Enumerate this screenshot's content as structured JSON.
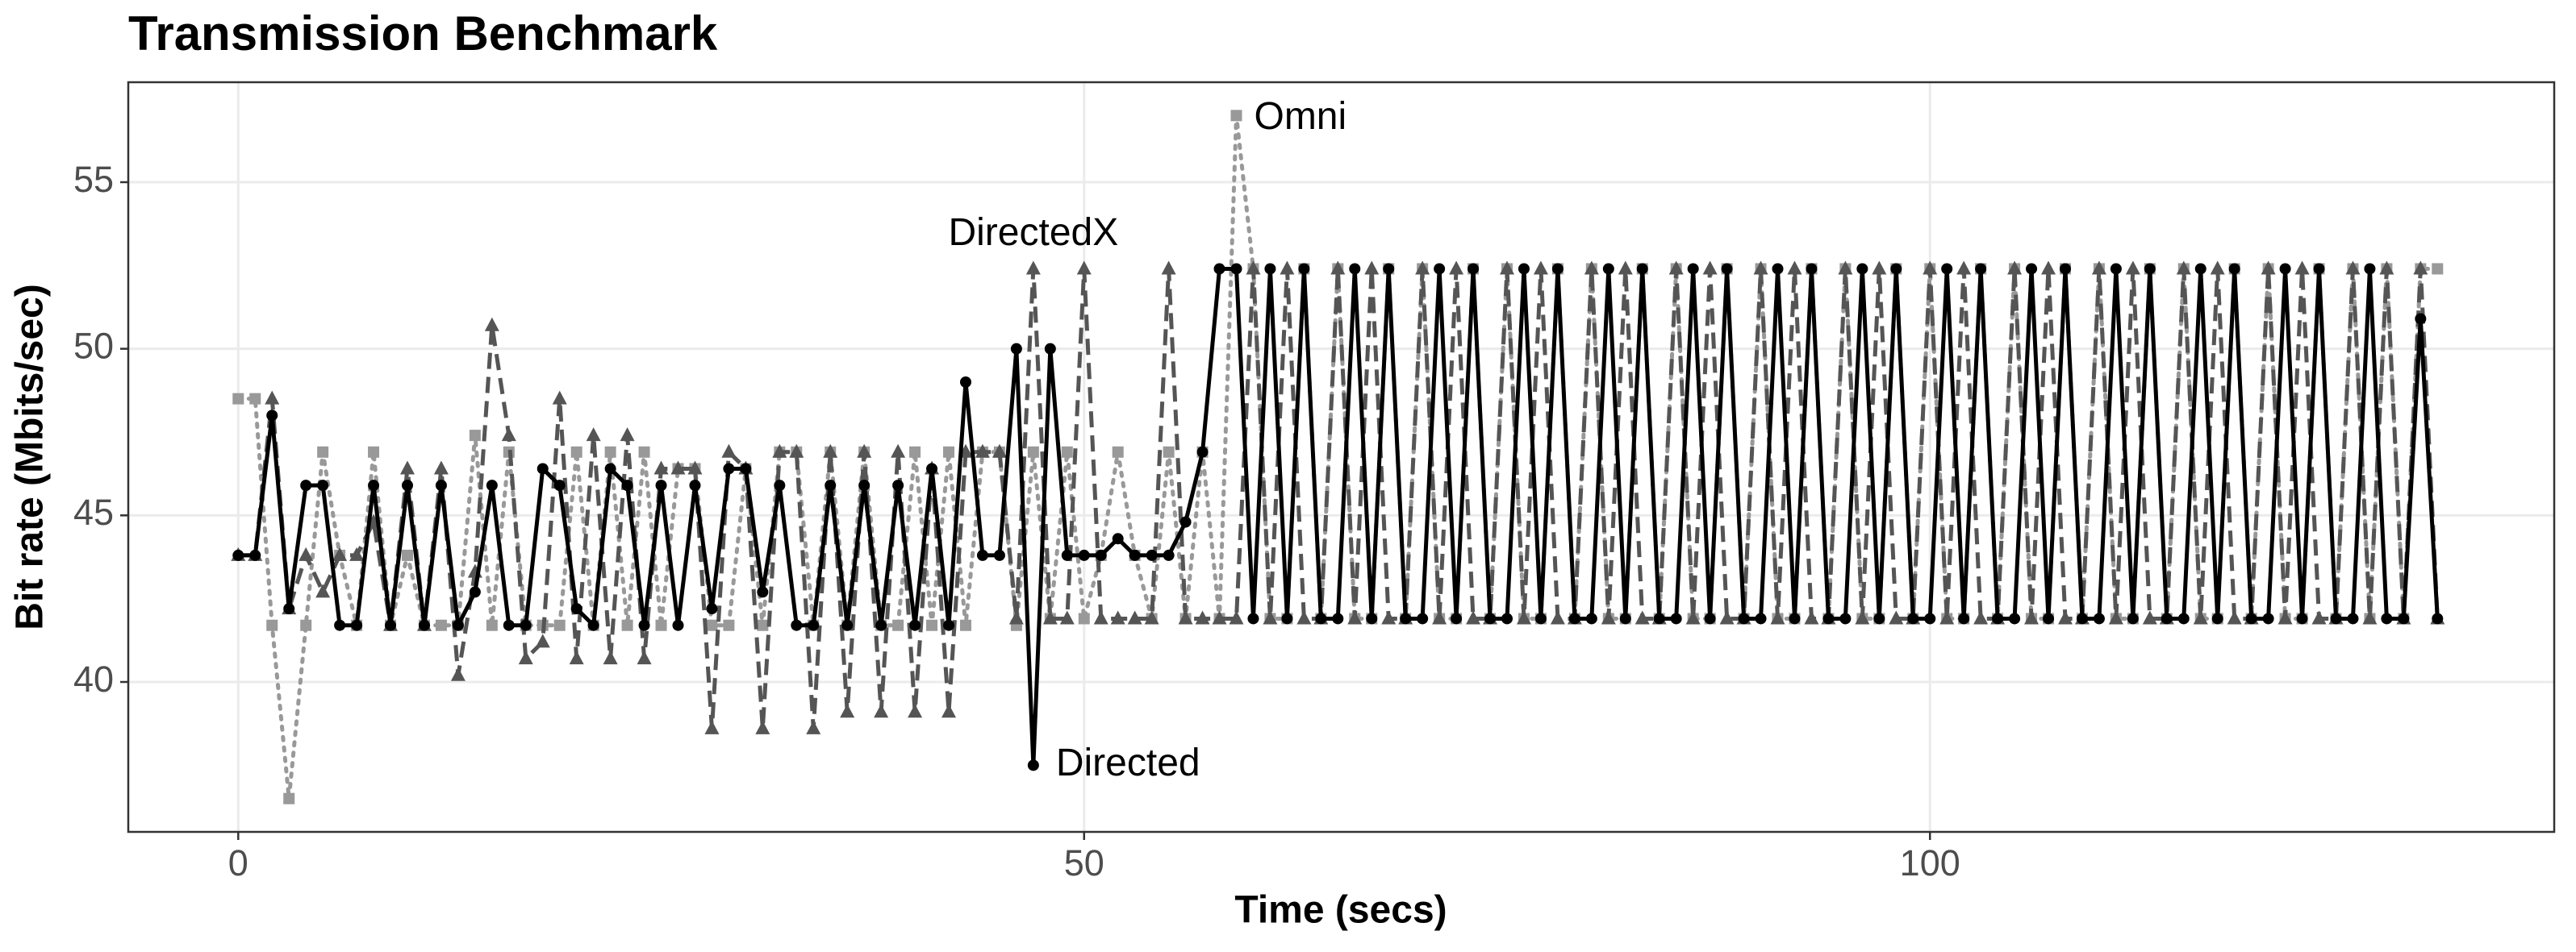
{
  "chart_data": {
    "type": "line",
    "title": "Transmission Benchmark",
    "x_label": "Time (secs)",
    "y_label": "Bit rate (Mbits/sec)",
    "xlim": [
      -6.5,
      136.9
    ],
    "ylim": [
      35.5,
      58.0
    ],
    "xticks": [
      0,
      50,
      100
    ],
    "yticks": [
      40,
      45,
      50,
      55
    ],
    "grid": true,
    "x": [
      0,
      1,
      2,
      3,
      4,
      5,
      6,
      7,
      8,
      9,
      10,
      11,
      12,
      13,
      14,
      15,
      16,
      17,
      18,
      19,
      20,
      21,
      22,
      23,
      24,
      25,
      26,
      27,
      28,
      29,
      30,
      31,
      32,
      33,
      34,
      35,
      36,
      37,
      38,
      39,
      40,
      41,
      42,
      43,
      44,
      45,
      46,
      47,
      48,
      49,
      50,
      51,
      52,
      53,
      54,
      55,
      56,
      57,
      58,
      59,
      60,
      61,
      62,
      63,
      64,
      65,
      66,
      67,
      68,
      69,
      70,
      71,
      72,
      73,
      74,
      75,
      76,
      77,
      78,
      79,
      80,
      81,
      82,
      83,
      84,
      85,
      86,
      87,
      88,
      89,
      90,
      91,
      92,
      93,
      94,
      95,
      96,
      97,
      98,
      99,
      100,
      101,
      102,
      103,
      104,
      105,
      106,
      107,
      108,
      109,
      110,
      111,
      112,
      113,
      114,
      115,
      116,
      117,
      118,
      119,
      120,
      121,
      122,
      123,
      124,
      125,
      126,
      127,
      128,
      129,
      130
    ],
    "series": [
      {
        "name": "Directed",
        "color": "#000000",
        "marker": "circle",
        "dash": "solid",
        "values": [
          43.8,
          43.8,
          48.0,
          42.2,
          45.9,
          45.9,
          41.7,
          41.7,
          45.9,
          41.7,
          45.9,
          41.7,
          45.9,
          41.7,
          42.7,
          45.9,
          41.7,
          41.7,
          46.4,
          45.9,
          42.2,
          41.7,
          46.4,
          45.9,
          41.7,
          45.9,
          41.7,
          45.9,
          42.2,
          46.4,
          46.4,
          42.7,
          45.9,
          41.7,
          41.7,
          45.9,
          41.7,
          45.9,
          41.7,
          45.9,
          41.7,
          46.4,
          41.7,
          49.0,
          43.8,
          43.8,
          50.0,
          37.5,
          50.0,
          43.8,
          43.8,
          43.8,
          44.3,
          43.8,
          43.8,
          43.8,
          44.8,
          46.9,
          52.4,
          52.4,
          41.9,
          52.4,
          41.9,
          52.4,
          41.9,
          41.9,
          52.4,
          41.9,
          52.4,
          41.9,
          41.9,
          52.4,
          41.9,
          52.4,
          41.9,
          41.9,
          52.4,
          41.9,
          52.4,
          41.9,
          41.9,
          52.4,
          41.9,
          52.4,
          41.9,
          41.9,
          52.4,
          41.9,
          52.4,
          41.9,
          41.9,
          52.4,
          41.9,
          52.4,
          41.9,
          41.9,
          52.4,
          41.9,
          52.4,
          41.9,
          41.9,
          52.4,
          41.9,
          52.4,
          41.9,
          41.9,
          52.4,
          41.9,
          52.4,
          41.9,
          41.9,
          52.4,
          41.9,
          52.4,
          41.9,
          41.9,
          52.4,
          41.9,
          52.4,
          41.9,
          41.9,
          52.4,
          41.9,
          52.4,
          41.9,
          41.9,
          52.4,
          41.9,
          41.9,
          50.9,
          41.9
        ]
      },
      {
        "name": "DirectedX",
        "color": "#555555",
        "marker": "triangle",
        "dash": "dashed",
        "values": [
          43.8,
          43.8,
          48.5,
          42.2,
          43.8,
          42.7,
          43.8,
          43.8,
          44.8,
          41.7,
          46.4,
          41.7,
          46.4,
          40.2,
          43.3,
          50.7,
          47.4,
          40.7,
          41.2,
          48.5,
          40.7,
          47.4,
          40.7,
          47.4,
          40.7,
          46.4,
          46.4,
          46.4,
          38.6,
          46.9,
          46.4,
          38.6,
          46.9,
          46.9,
          38.6,
          46.9,
          39.1,
          46.9,
          39.1,
          46.9,
          39.1,
          46.4,
          39.1,
          46.9,
          46.9,
          46.9,
          41.9,
          52.4,
          41.9,
          41.9,
          52.4,
          41.9,
          41.9,
          41.9,
          41.9,
          52.4,
          41.9,
          41.9,
          41.9,
          41.9,
          52.4,
          41.9,
          52.4,
          41.9,
          41.9,
          52.4,
          41.9,
          52.4,
          41.9,
          41.9,
          52.4,
          41.9,
          52.4,
          41.9,
          41.9,
          52.4,
          41.9,
          52.4,
          41.9,
          41.9,
          52.4,
          41.9,
          52.4,
          41.9,
          41.9,
          52.4,
          41.9,
          52.4,
          41.9,
          41.9,
          52.4,
          41.9,
          52.4,
          41.9,
          41.9,
          52.4,
          41.9,
          52.4,
          41.9,
          41.9,
          52.4,
          41.9,
          52.4,
          41.9,
          41.9,
          52.4,
          41.9,
          52.4,
          41.9,
          41.9,
          52.4,
          41.9,
          52.4,
          41.9,
          41.9,
          52.4,
          41.9,
          52.4,
          41.9,
          41.9,
          52.4,
          41.9,
          52.4,
          41.9,
          41.9,
          52.4,
          41.9,
          52.4,
          41.9,
          52.4,
          41.9
        ]
      },
      {
        "name": "Omni",
        "color": "#999999",
        "marker": "square",
        "dash": "dotted",
        "values": [
          48.5,
          48.5,
          41.7,
          36.5,
          41.7,
          46.9,
          43.8,
          41.7,
          46.9,
          41.7,
          43.8,
          41.7,
          41.7,
          41.7,
          47.4,
          41.7,
          46.9,
          41.7,
          41.7,
          41.7,
          46.9,
          41.7,
          46.9,
          41.7,
          46.9,
          41.7,
          46.4,
          46.4,
          41.7,
          41.7,
          46.4,
          41.7,
          46.9,
          46.9,
          41.7,
          46.9,
          41.7,
          46.9,
          41.7,
          41.7,
          46.9,
          41.7,
          46.9,
          41.7,
          46.9,
          46.9,
          41.7,
          46.9,
          41.9,
          46.9,
          41.9,
          43.8,
          46.9,
          43.8,
          41.9,
          46.9,
          41.9,
          46.9,
          41.9,
          57.0,
          52.4,
          41.9,
          41.9,
          52.4,
          41.9,
          52.4,
          41.9,
          41.9,
          52.4,
          41.9,
          52.4,
          41.9,
          41.9,
          52.4,
          41.9,
          52.4,
          41.9,
          41.9,
          52.4,
          41.9,
          52.4,
          41.9,
          41.9,
          52.4,
          41.9,
          52.4,
          41.9,
          41.9,
          52.4,
          41.9,
          52.4,
          41.9,
          41.9,
          52.4,
          41.9,
          52.4,
          41.9,
          41.9,
          52.4,
          41.9,
          52.4,
          41.9,
          41.9,
          52.4,
          41.9,
          52.4,
          41.9,
          41.9,
          52.4,
          41.9,
          52.4,
          41.9,
          41.9,
          52.4,
          41.9,
          52.4,
          41.9,
          41.9,
          52.4,
          41.9,
          52.4,
          41.9,
          41.9,
          52.4,
          41.9,
          52.4,
          41.9,
          52.4,
          41.9,
          52.4,
          52.4
        ]
      }
    ]
  }
}
